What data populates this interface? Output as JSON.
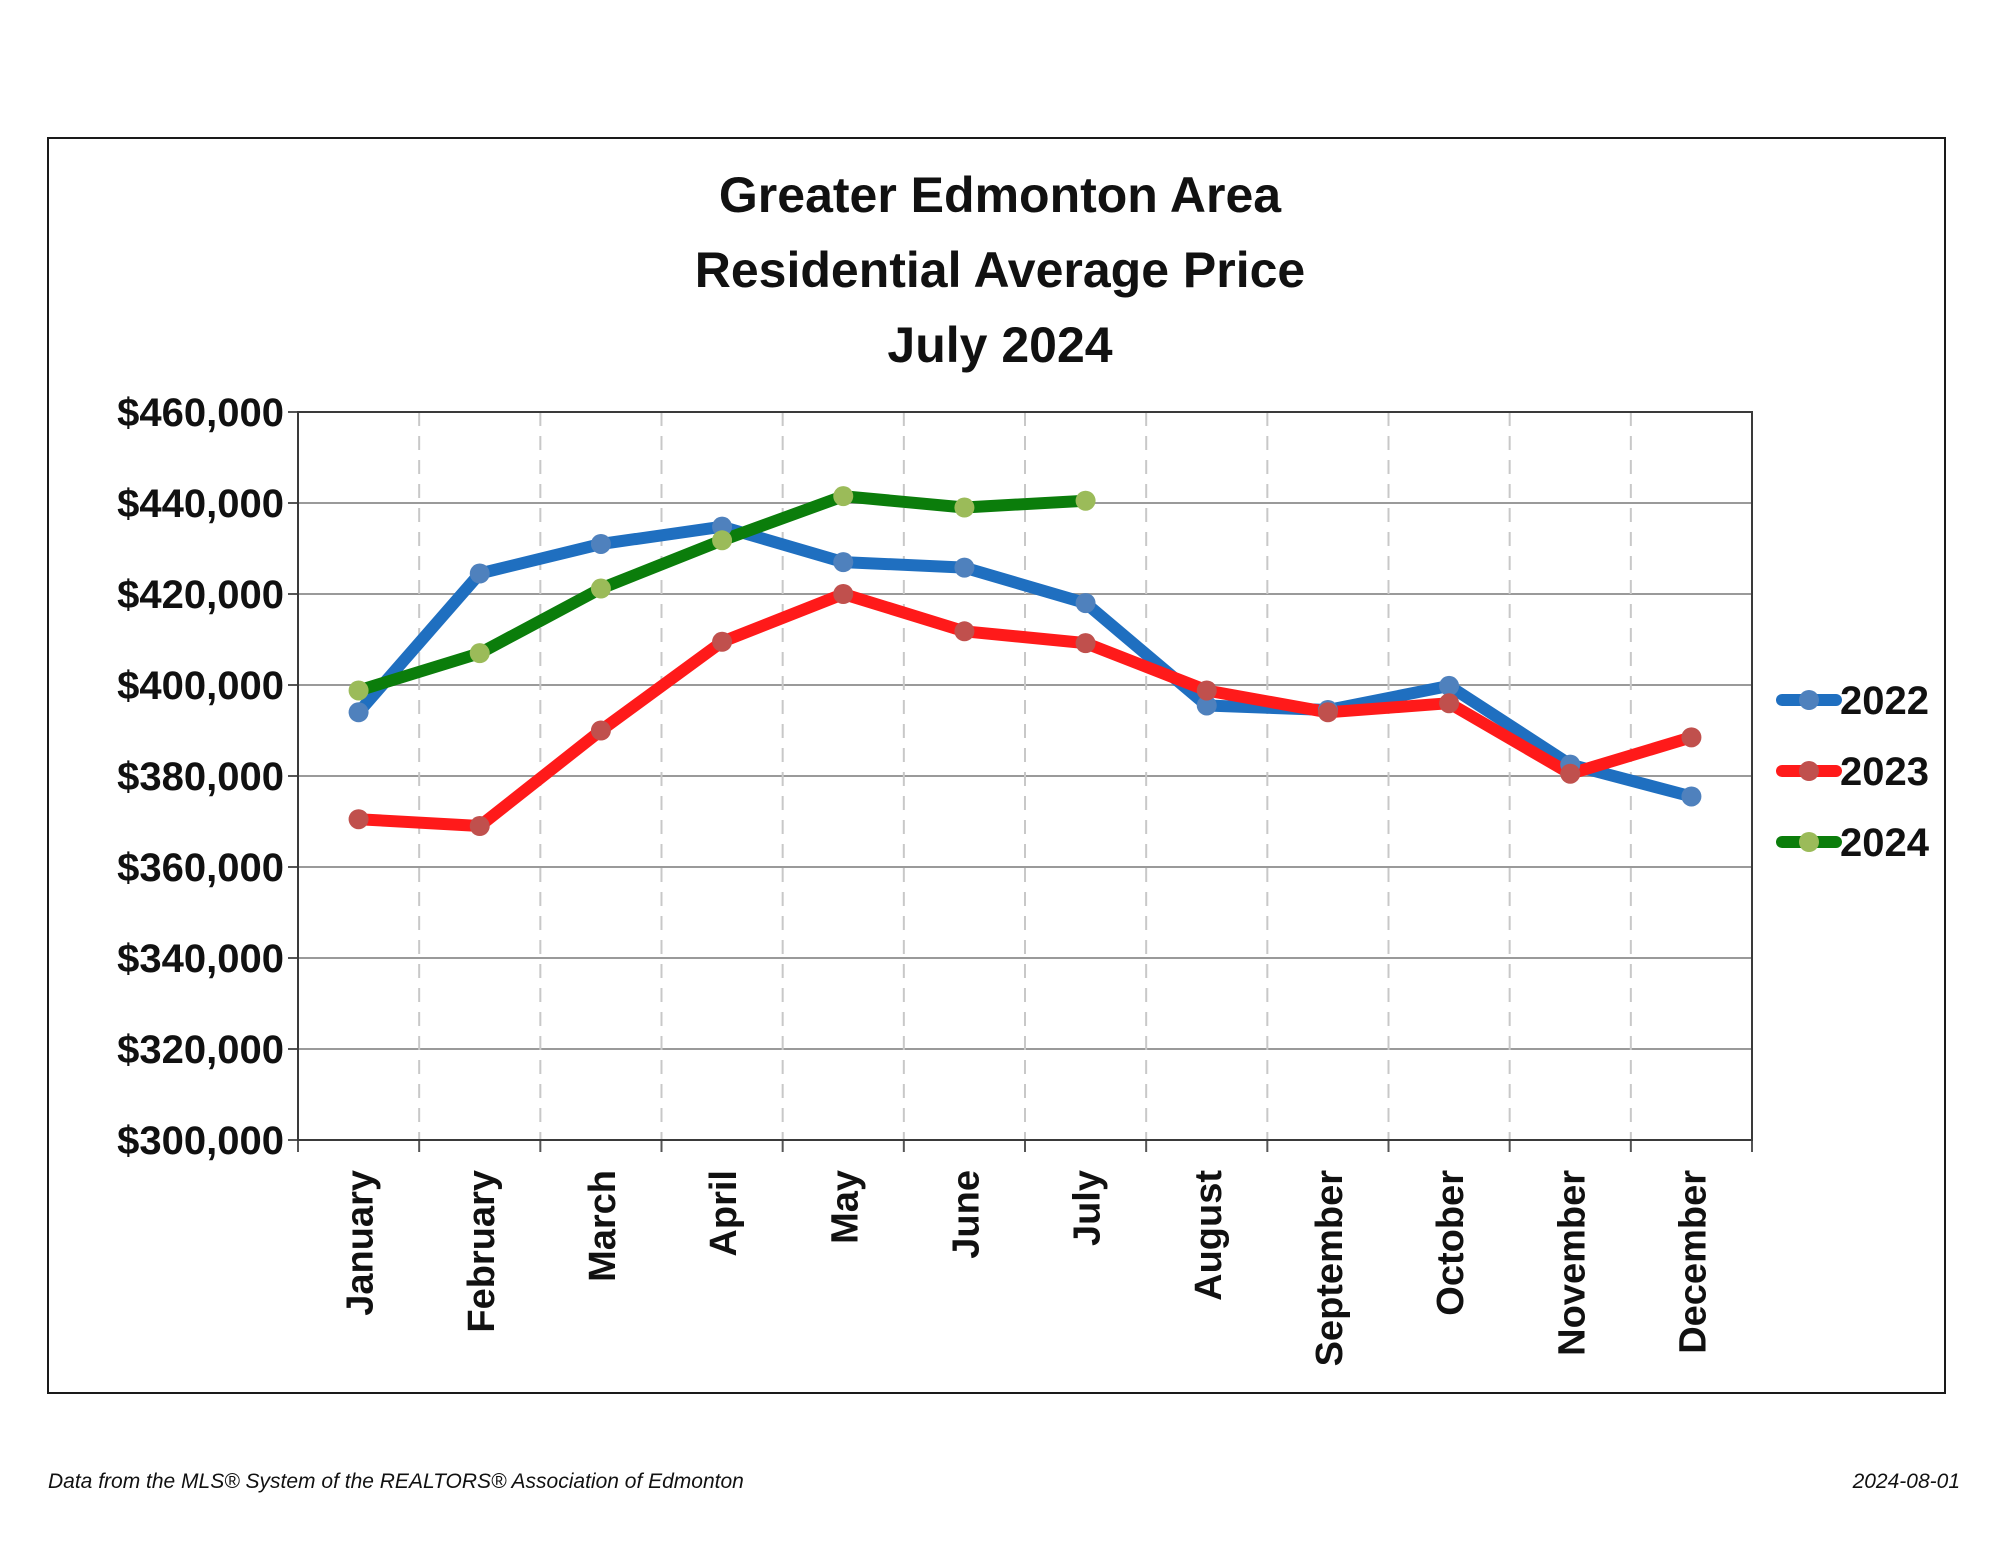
{
  "chart_data": {
    "type": "line",
    "title_lines": [
      "Greater Edmonton Area",
      "Residential Average Price",
      "July 2024"
    ],
    "categories": [
      "January",
      "February",
      "March",
      "April",
      "May",
      "June",
      "July",
      "August",
      "September",
      "October",
      "November",
      "December"
    ],
    "ylim": [
      300000,
      460000
    ],
    "yticks": [
      300000,
      320000,
      340000,
      360000,
      380000,
      400000,
      420000,
      440000,
      460000
    ],
    "ytick_labels": [
      "$300,000",
      "$320,000",
      "$340,000",
      "$360,000",
      "$380,000",
      "$400,000",
      "$420,000",
      "$440,000",
      "$460,000"
    ],
    "xlabel": "",
    "ylabel": "",
    "grid": true,
    "legend_position": "right",
    "series": [
      {
        "name": "2022",
        "line_color": "#1f6fc0",
        "marker_color": "#4f81bd",
        "values": [
          394000,
          424500,
          431000,
          434800,
          427000,
          425800,
          418000,
          395500,
          394500,
          399800,
          382500,
          375500
        ]
      },
      {
        "name": "2023",
        "line_color": "#ff1a1a",
        "marker_color": "#c0504d",
        "values": [
          370500,
          369000,
          390000,
          409500,
          420000,
          411800,
          409200,
          398800,
          394000,
          396000,
          380500,
          388500
        ]
      },
      {
        "name": "2024",
        "line_color": "#0b7d0b",
        "marker_color": "#9bbb59",
        "values": [
          398800,
          407000,
          421200,
          431800,
          441500,
          439000,
          440500,
          null,
          null,
          null,
          null,
          null
        ]
      }
    ]
  },
  "footer": {
    "source": "Data from the MLS® System of the REALTORS® Association of Edmonton",
    "date": "2024-08-01"
  }
}
